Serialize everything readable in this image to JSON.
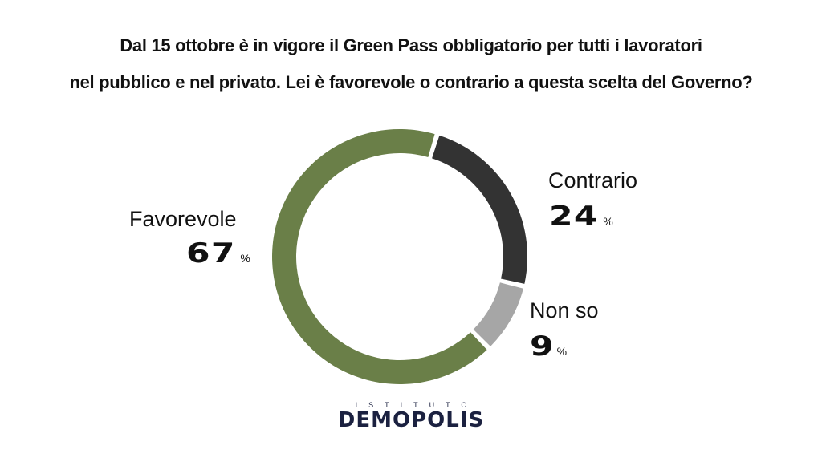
{
  "title": {
    "line1": "Dal 15 ottobre è in vigore il Green Pass obbligatorio per tutti i lavoratori",
    "line2": "nel pubblico e nel privato. Lei è favorevole o contrario a questa scelta del Governo?"
  },
  "chart_data": {
    "type": "pie",
    "variant": "donut",
    "title": "Dal 15 ottobre è in vigore il Green Pass obbligatorio per tutti i lavoratori nel pubblico e nel privato. Lei è favorevole o contrario a questa scelta del Governo?",
    "categories": [
      "Contrario",
      "Non so",
      "Favorevole"
    ],
    "values": [
      24,
      9,
      67
    ],
    "unit": "%",
    "colors": [
      "#333333",
      "#a6a6a6",
      "#6a7f48"
    ],
    "labels": {
      "Favorevole": "Favorevole",
      "Contrario": "Contrario",
      "Non so": "Non so"
    },
    "value_labels": {
      "Favorevole": "67",
      "Contrario": "24",
      "Non so": "9"
    },
    "percent_symbol": "%"
  },
  "logo": {
    "top": "ISTITUTO",
    "main": "DEMOPOLIS",
    "color": "#1b2140",
    "accent": "#e08a1e"
  }
}
